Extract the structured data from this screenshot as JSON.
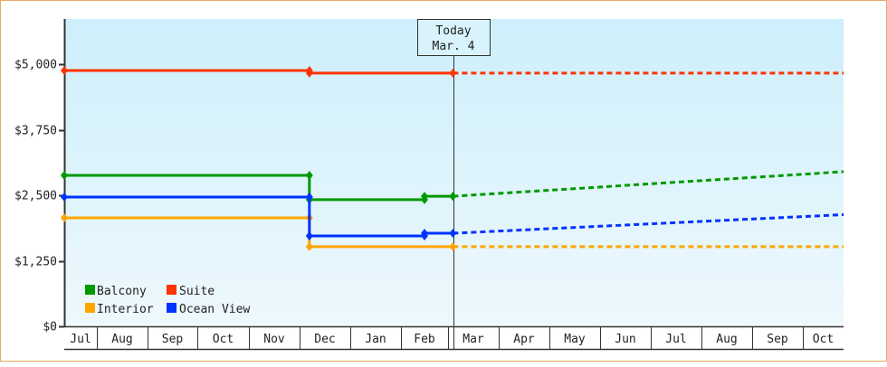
{
  "chart_data": {
    "type": "line",
    "title": "",
    "xlabel": "",
    "ylabel": "",
    "ylim": [
      0,
      6000
    ],
    "y_ticks": [
      "$0",
      "$1,250",
      "$2,500",
      "$3,750",
      "$5,000"
    ],
    "y_tick_values": [
      0,
      1250,
      2500,
      3750,
      5000
    ],
    "x_ticks": [
      "Jul",
      "Aug",
      "Sep",
      "Oct",
      "Nov",
      "Dec",
      "Jan",
      "Feb",
      "Mar",
      "Apr",
      "May",
      "Jun",
      "Jul",
      "Aug",
      "Sep",
      "Oct"
    ],
    "grid": false,
    "legend_position": "lower-left inside",
    "annotation": {
      "line1": "Today",
      "line2": "Mar. 4"
    },
    "series": [
      {
        "name": "Balcony",
        "color": "#009900",
        "actual": [
          [
            "Jul 1",
            2880
          ],
          [
            "Dec 7",
            2880
          ],
          [
            "Dec 7",
            2415
          ],
          [
            "Feb 15",
            2415
          ],
          [
            "Feb 15",
            2480
          ],
          [
            "Mar 4",
            2480
          ]
        ],
        "projected": [
          [
            "Mar 4",
            2480
          ],
          [
            "Oct 31",
            2950
          ]
        ]
      },
      {
        "name": "Suite",
        "color": "#ff3300",
        "actual": [
          [
            "Jul 1",
            4880
          ],
          [
            "Dec 7",
            4880
          ],
          [
            "Dec 7",
            4830
          ],
          [
            "Mar 4",
            4830
          ]
        ],
        "projected": [
          [
            "Mar 4",
            4830
          ],
          [
            "Oct 31",
            4830
          ]
        ]
      },
      {
        "name": "Interior",
        "color": "#ffa500",
        "actual": [
          [
            "Jul 1",
            2070
          ],
          [
            "Dec 7",
            2070
          ],
          [
            "Dec 7",
            1520
          ],
          [
            "Mar 4",
            1520
          ]
        ],
        "projected": [
          [
            "Mar 4",
            1520
          ],
          [
            "Oct 31",
            1520
          ]
        ]
      },
      {
        "name": "Ocean View",
        "color": "#0033ff",
        "actual": [
          [
            "Jul 1",
            2465
          ],
          [
            "Dec 7",
            2465
          ],
          [
            "Dec 7",
            1725
          ],
          [
            "Feb 15",
            1725
          ],
          [
            "Feb 15",
            1775
          ],
          [
            "Mar 4",
            1775
          ]
        ],
        "projected": [
          [
            "Mar 4",
            1775
          ],
          [
            "Oct 31",
            2130
          ]
        ]
      }
    ]
  },
  "legend": [
    {
      "label": "Balcony",
      "color": "#009900"
    },
    {
      "label": "Suite",
      "color": "#ff3300"
    },
    {
      "label": "Interior",
      "color": "#ffa500"
    },
    {
      "label": "Ocean View",
      "color": "#0033ff"
    }
  ]
}
